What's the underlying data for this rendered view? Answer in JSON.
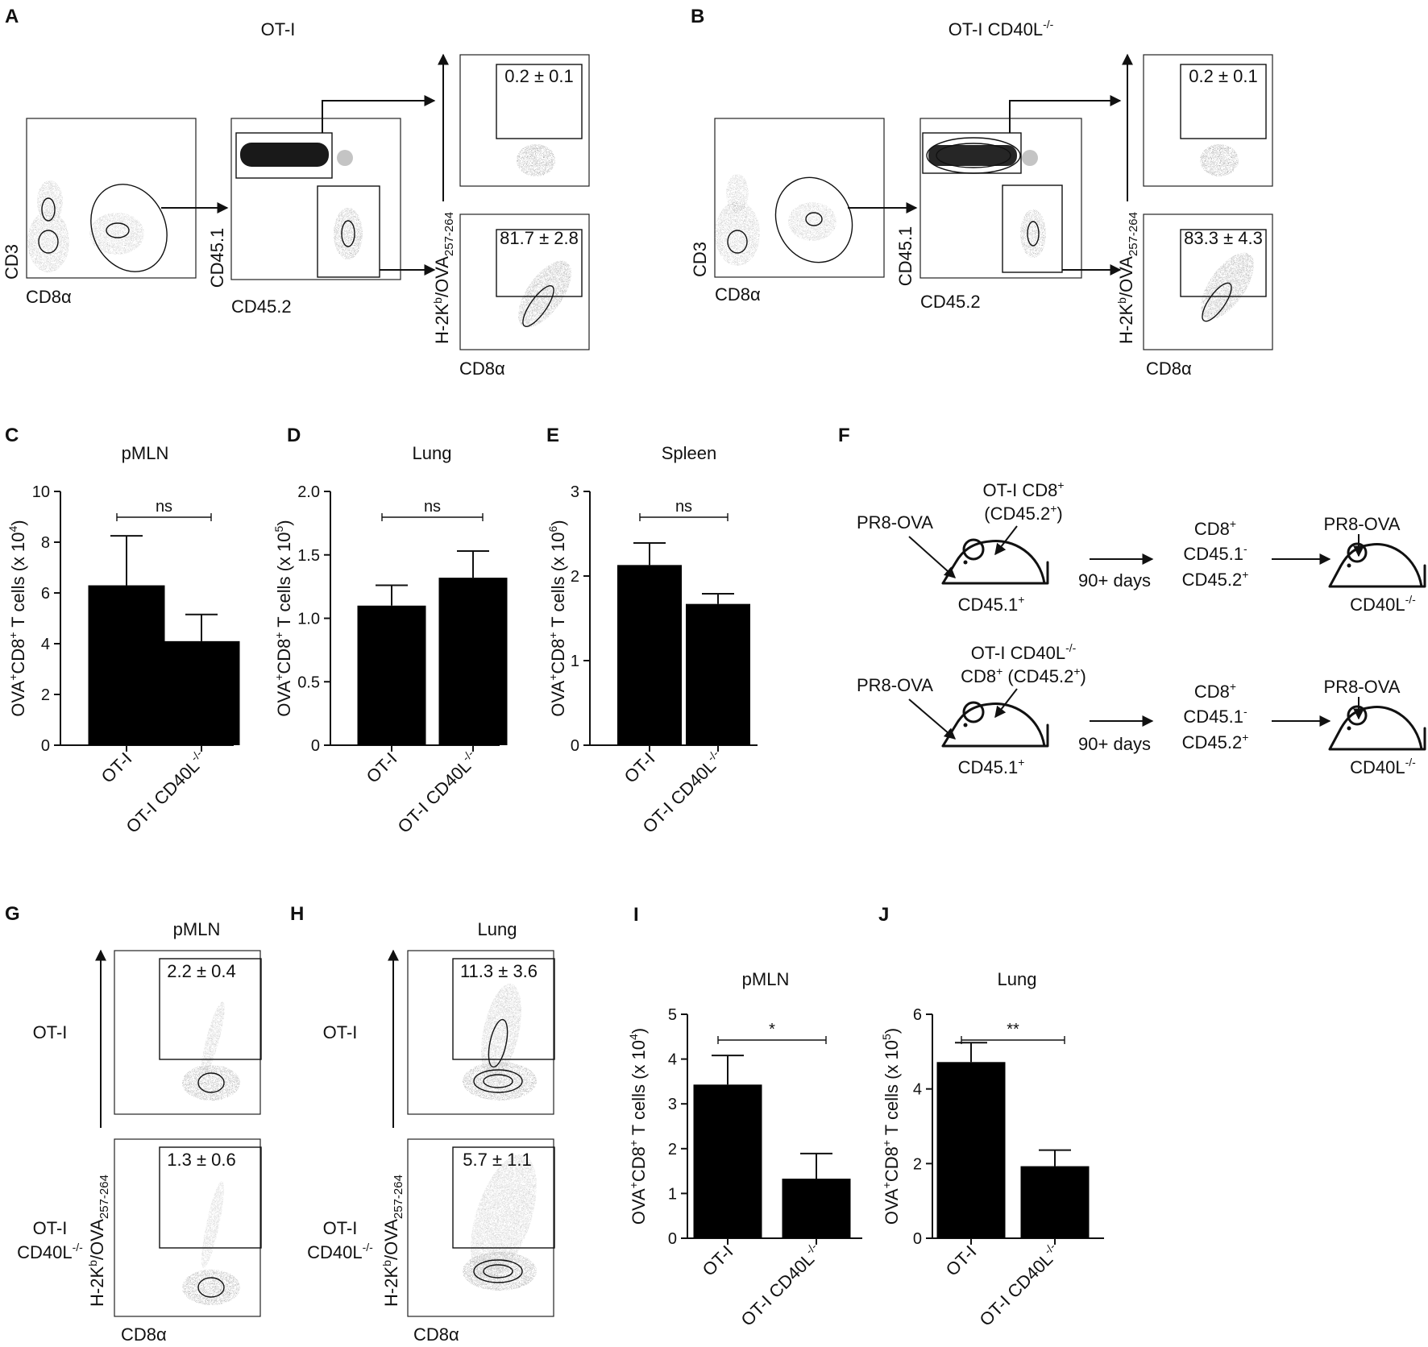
{
  "panels": {
    "A": {
      "letter": "A",
      "title": "OT-I"
    },
    "B": {
      "letter": "B",
      "title": "OT-I CD40L"
    },
    "C": {
      "letter": "C"
    },
    "D": {
      "letter": "D"
    },
    "E": {
      "letter": "E"
    },
    "F": {
      "letter": "F"
    },
    "G": {
      "letter": "G"
    },
    "H": {
      "letter": "H"
    },
    "I": {
      "letter": "I"
    },
    "J": {
      "letter": "J"
    }
  },
  "superscripts": {
    "ko": "-/-",
    "plus": "+",
    "minus": "-",
    "b": "b"
  },
  "flow_labels": {
    "cd3": "CD3",
    "cd8a": "CD8α",
    "cd451": "CD45.1",
    "cd452": "CD45.2",
    "h2kb_prefix": "H-2K",
    "h2kb_suffix": "/OVA",
    "ova_sub": "257-264"
  },
  "flow_gates": {
    "A_top": "0.2 ± 0.1",
    "A_bottom": "81.7 ± 2.8",
    "B_top": "0.2 ± 0.1",
    "B_bottom": "83.3 ± 4.3",
    "G_top": "2.2 ± 0.4",
    "G_bottom": "1.3 ± 0.6",
    "H_top": "11.3 ± 3.6",
    "H_bottom": "5.7 ± 1.1"
  },
  "gh_labels": {
    "G_title": "pMLN",
    "H_title": "Lung",
    "row_top": "OT-I",
    "row_bottom_line1": "OT-I",
    "row_bottom_line2": "CD40L"
  },
  "axis_common": {
    "ylabel_prefix": "OVA",
    "ylabel_mid": "CD8",
    "ylabel_suffix": " T cells (x 10",
    "ylabel_end": ")"
  },
  "chart_data": [
    {
      "id": "C",
      "type": "bar",
      "title": "pMLN",
      "categories": [
        "OT-I",
        "OT-I CD40L-/-"
      ],
      "values": [
        6.3,
        4.1
      ],
      "errors": [
        1.95,
        1.05
      ],
      "ylim": [
        0,
        10
      ],
      "yticks": [
        "0",
        "2",
        "4",
        "6",
        "8",
        "10"
      ],
      "ylabel_exp": "4",
      "significance": "ns"
    },
    {
      "id": "D",
      "type": "bar",
      "title": "Lung",
      "categories": [
        "OT-I",
        "OT-I CD40L-/-"
      ],
      "values": [
        1.1,
        1.32
      ],
      "errors": [
        0.16,
        0.21
      ],
      "ylim": [
        0,
        2.0
      ],
      "yticks": [
        "0",
        "0.5",
        "1.0",
        "1.5",
        "2.0"
      ],
      "ylabel_exp": "5",
      "significance": "ns"
    },
    {
      "id": "E",
      "type": "bar",
      "title": "Spleen",
      "categories": [
        "OT-I",
        "OT-I CD40L-/-"
      ],
      "values": [
        2.13,
        1.67
      ],
      "errors": [
        0.26,
        0.12
      ],
      "ylim": [
        0,
        3
      ],
      "yticks": [
        "0",
        "1",
        "2",
        "3"
      ],
      "ylabel_exp": "6",
      "significance": "ns"
    },
    {
      "id": "I",
      "type": "bar",
      "title": "pMLN",
      "categories": [
        "OT-I",
        "OT-I CD40L-/-"
      ],
      "values": [
        3.43,
        1.33
      ],
      "errors": [
        0.65,
        0.56
      ],
      "ylim": [
        0,
        5
      ],
      "yticks": [
        "0",
        "1",
        "2",
        "3",
        "4",
        "5"
      ],
      "ylabel_exp": "4",
      "significance": "*"
    },
    {
      "id": "J",
      "type": "bar",
      "title": "Lung",
      "categories": [
        "OT-I",
        "OT-I CD40L-/-"
      ],
      "values": [
        4.72,
        1.93
      ],
      "errors": [
        0.52,
        0.43
      ],
      "ylim": [
        0,
        6
      ],
      "yticks": [
        "0",
        "2",
        "4",
        "6"
      ],
      "ylabel_exp": "5",
      "significance": "**"
    }
  ],
  "schematic": {
    "virus": "PR8-OVA",
    "row1_donor_line1": "OT-I CD8",
    "row1_donor_line2": "(CD45.2",
    "row2_donor_line1": "OT-I CD40L",
    "row2_donor_line2": "CD8",
    "row2_donor_line2b": " (CD45.2",
    "recipient": "CD45.1",
    "days": "90+ days",
    "cd8": "CD8",
    "cd451": "CD45.1",
    "cd452": "CD45.2",
    "final": "CD40L"
  }
}
